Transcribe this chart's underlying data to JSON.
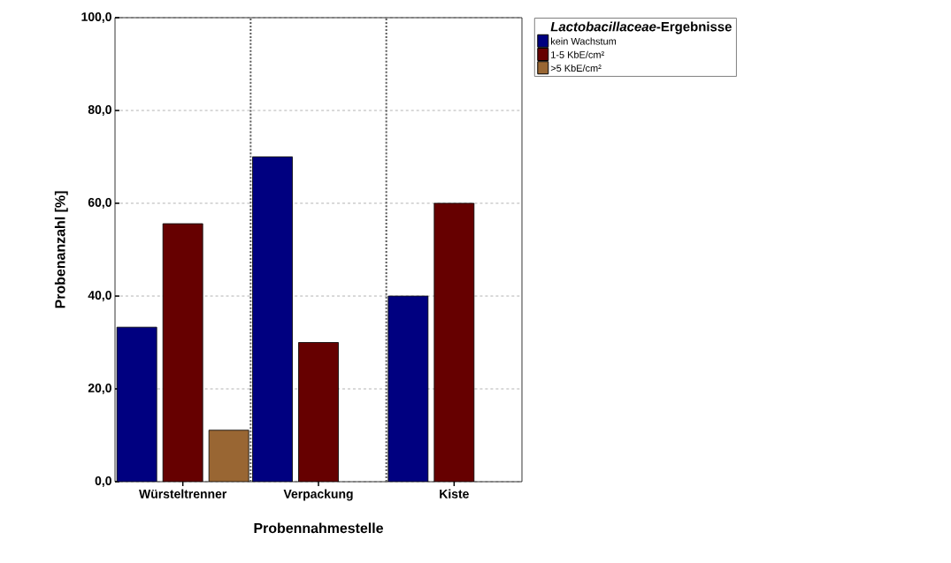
{
  "chart_data": {
    "type": "bar",
    "xlabel": "Probennahmestelle",
    "ylabel": "Probenanzahl [%]",
    "legend_title": "*Lactobacillaceae*-Ergebnisse",
    "categories": [
      "Würsteltrenner",
      "Verpackung",
      "Kiste"
    ],
    "series": [
      {
        "name": "kein Wachstum",
        "color": "#000080",
        "values": [
          33.3,
          70,
          40
        ]
      },
      {
        "name": "1-5 KbE/cm²",
        "color": "#660000",
        "values": [
          55.6,
          30,
          60
        ]
      },
      {
        "name": ">5 KbE/cm²",
        "color": "#996633",
        "values": [
          11.1,
          null,
          null
        ]
      }
    ],
    "ylim": [
      0,
      100
    ],
    "yticks": [
      {
        "value": 0,
        "label": "0,0"
      },
      {
        "value": 20,
        "label": "20,0"
      },
      {
        "value": 40,
        "label": "40,0"
      },
      {
        "value": 60,
        "label": "60,0"
      },
      {
        "value": 80,
        "label": "80,0"
      },
      {
        "value": 100,
        "label": "100,0"
      }
    ],
    "grid": "y",
    "legend": "top right"
  }
}
